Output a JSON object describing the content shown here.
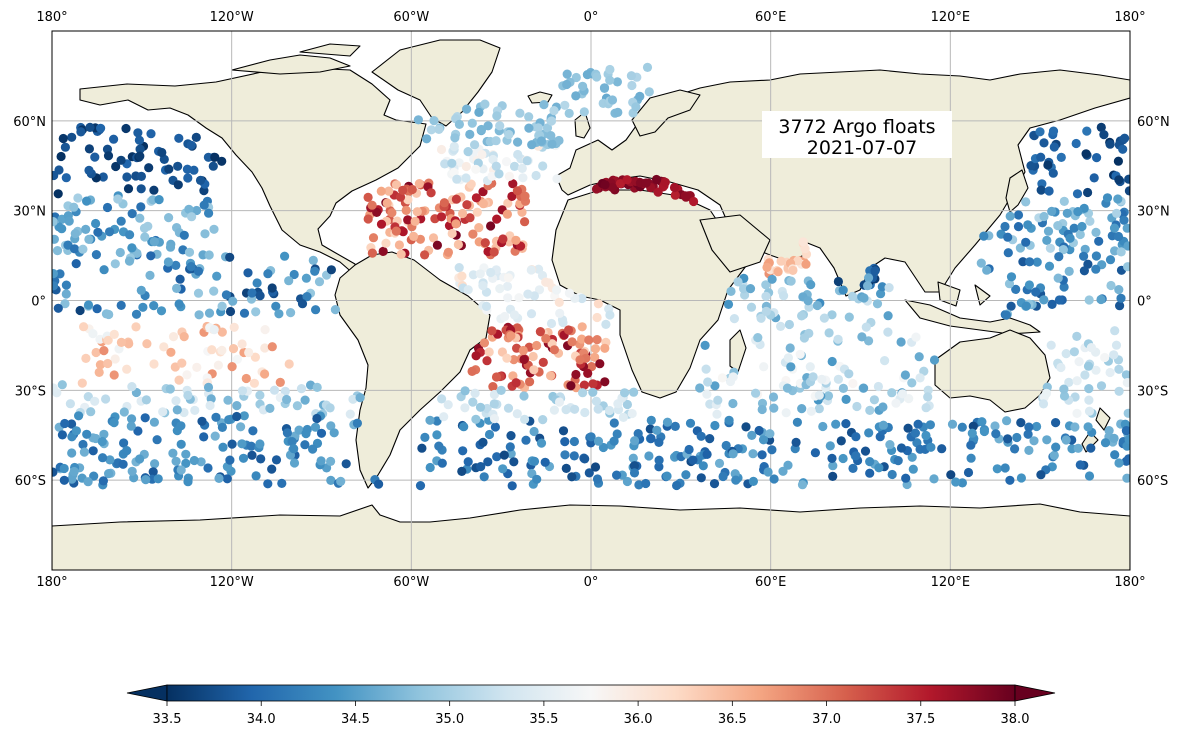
{
  "map": {
    "title_line1": "3772 Argo floats",
    "title_line2": "2021-07-07",
    "float_count": 3772,
    "date": "2021-07-07",
    "projection": "PlateCarree",
    "extent": {
      "lon": [
        -180,
        180
      ],
      "lat": [
        -90,
        90
      ]
    },
    "colors": {
      "land": "#efedda",
      "coast": "#000000",
      "grid": "#b8b8b8",
      "ocean": "#ffffff"
    },
    "top_lon_labels": [
      "180°",
      "120°W",
      "60°W",
      "0°",
      "60°E",
      "120°E",
      "180°"
    ],
    "bottom_lon_labels": [
      "180°",
      "120°W",
      "60°W",
      "0°",
      "60°E",
      "120°E",
      "180°"
    ],
    "left_lat_labels": [
      "60°N",
      "30°N",
      "0°",
      "30°S",
      "60°S"
    ],
    "right_lat_labels": [
      "60°N",
      "30°N",
      "0°",
      "30°S",
      "60°S"
    ],
    "lon_ticks": [
      -180,
      -120,
      -60,
      0,
      60,
      120,
      180
    ],
    "lat_ticks": [
      60,
      30,
      0,
      -30,
      -60
    ]
  },
  "colorbar": {
    "min": 33.5,
    "max": 38.0,
    "center": 35.75,
    "colormap": "RdBu_r",
    "extend": "both",
    "tick_labels": [
      "33.5",
      "34.0",
      "34.5",
      "35.0",
      "35.5",
      "36.0",
      "36.5",
      "37.0",
      "37.5",
      "38.0"
    ],
    "tick_values": [
      33.5,
      34.0,
      34.5,
      35.0,
      35.5,
      36.0,
      36.5,
      37.0,
      37.5,
      38.0
    ],
    "stops": [
      "#053061",
      "#2166ac",
      "#4393c3",
      "#92c5de",
      "#d1e5f0",
      "#f7f7f7",
      "#fddbc7",
      "#f4a582",
      "#d6604d",
      "#b2182b",
      "#67001f"
    ]
  },
  "float_regions": [
    {
      "name": "north-pacific-east",
      "lon": [
        -180,
        -120
      ],
      "lat": [
        35,
        58
      ],
      "n": 70,
      "sal": [
        33.5,
        33.95
      ]
    },
    {
      "name": "north-pacific-west",
      "lon": [
        142,
        180
      ],
      "lat": [
        35,
        58
      ],
      "n": 45,
      "sal": [
        33.5,
        34.1
      ]
    },
    {
      "name": "north-pacific-subtropical",
      "lon": [
        -180,
        -125
      ],
      "lat": [
        15,
        35
      ],
      "n": 80,
      "sal": [
        34.0,
        35.0
      ]
    },
    {
      "name": "west-pacific-subtropical",
      "lon": [
        125,
        180
      ],
      "lat": [
        15,
        35
      ],
      "n": 70,
      "sal": [
        34.0,
        35.1
      ]
    },
    {
      "name": "tropical-pacific-east",
      "lon": [
        -180,
        -85
      ],
      "lat": [
        -5,
        15
      ],
      "n": 90,
      "sal": [
        33.6,
        34.9
      ]
    },
    {
      "name": "tropical-pacific-west",
      "lon": [
        130,
        180
      ],
      "lat": [
        -5,
        15
      ],
      "n": 50,
      "sal": [
        33.8,
        34.9
      ]
    },
    {
      "name": "south-pacific-salty",
      "lon": [
        -170,
        -100
      ],
      "lat": [
        -28,
        -8
      ],
      "n": 70,
      "sal": [
        35.6,
        36.8
      ]
    },
    {
      "name": "south-pacific-mid",
      "lon": [
        -180,
        -75
      ],
      "lat": [
        -38,
        -28
      ],
      "n": 60,
      "sal": [
        34.6,
        35.6
      ]
    },
    {
      "name": "southern-ocean-pacific",
      "lon": [
        -180,
        -70
      ],
      "lat": [
        -62,
        -38
      ],
      "n": 150,
      "sal": [
        33.8,
        34.7
      ]
    },
    {
      "name": "southern-ocean-atlantic",
      "lon": [
        -60,
        20
      ],
      "lat": [
        -62,
        -40
      ],
      "n": 90,
      "sal": [
        33.7,
        34.6
      ]
    },
    {
      "name": "southern-ocean-indian",
      "lon": [
        20,
        180
      ],
      "lat": [
        -62,
        -40
      ],
      "n": 200,
      "sal": [
        33.7,
        34.7
      ]
    },
    {
      "name": "north-atlantic-salty",
      "lon": [
        -75,
        -20
      ],
      "lat": [
        15,
        40
      ],
      "n": 140,
      "sal": [
        36.2,
        37.9
      ]
    },
    {
      "name": "north-atlantic-mid",
      "lon": [
        -50,
        -10
      ],
      "lat": [
        40,
        52
      ],
      "n": 50,
      "sal": [
        35.0,
        36.0
      ]
    },
    {
      "name": "subpolar-atlantic",
      "lon": [
        -60,
        -10
      ],
      "lat": [
        52,
        66
      ],
      "n": 60,
      "sal": [
        34.6,
        35.1
      ]
    },
    {
      "name": "nordic-seas",
      "lon": [
        -10,
        20
      ],
      "lat": [
        62,
        78
      ],
      "n": 40,
      "sal": [
        34.6,
        35.1
      ]
    },
    {
      "name": "tropical-atlantic",
      "lon": [
        -45,
        10
      ],
      "lat": [
        -8,
        12
      ],
      "n": 60,
      "sal": [
        35.2,
        36.2
      ]
    },
    {
      "name": "south-atlantic-salty",
      "lon": [
        -40,
        5
      ],
      "lat": [
        -30,
        -8
      ],
      "n": 100,
      "sal": [
        36.2,
        37.9
      ]
    },
    {
      "name": "south-atlantic-south",
      "lon": [
        -50,
        15
      ],
      "lat": [
        -40,
        -30
      ],
      "n": 50,
      "sal": [
        34.8,
        35.6
      ]
    },
    {
      "name": "mediterranean",
      "lon": [
        0,
        35
      ],
      "lat": [
        32,
        43
      ],
      "n": 50,
      "sal": [
        37.5,
        38.0
      ]
    },
    {
      "name": "arabian-sea",
      "lon": [
        58,
        72
      ],
      "lat": [
        8,
        25
      ],
      "n": 25,
      "sal": [
        36.0,
        36.8
      ]
    },
    {
      "name": "bay-of-bengal",
      "lon": [
        82,
        95
      ],
      "lat": [
        5,
        20
      ],
      "n": 15,
      "sal": [
        33.5,
        34.2
      ]
    },
    {
      "name": "north-indian",
      "lon": [
        45,
        100
      ],
      "lat": [
        -12,
        8
      ],
      "n": 60,
      "sal": [
        34.3,
        35.3
      ]
    },
    {
      "name": "south-indian-mid",
      "lon": [
        35,
        115
      ],
      "lat": [
        -38,
        -12
      ],
      "n": 100,
      "sal": [
        34.4,
        35.8
      ]
    },
    {
      "name": "tasman-coral",
      "lon": [
        150,
        180
      ],
      "lat": [
        -38,
        -10
      ],
      "n": 45,
      "sal": [
        34.8,
        35.7
      ]
    }
  ]
}
